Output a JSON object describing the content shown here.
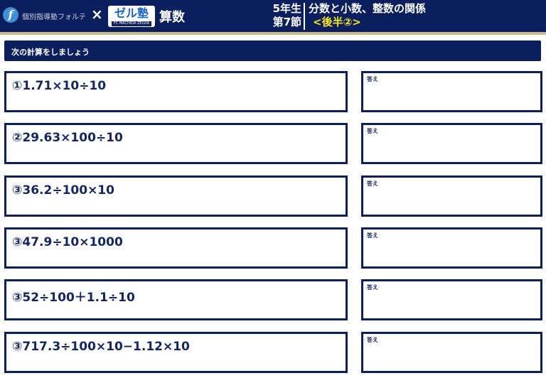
{
  "header": {
    "logo_letter": "f",
    "brand": "個別指導塾フォルテ",
    "times": "×",
    "partner_logo": "ゼル塾",
    "partner_sub": "FC MACHIDA ZELVIA",
    "subject": "算数",
    "grade": "5年生",
    "section": "第7節",
    "title": "分数と小数、整数の関係",
    "subtitle": "<後半②>"
  },
  "instruction": "次の計算をしましょう",
  "answer_label": "答え",
  "problems": [
    "①1.71×10÷10",
    "②29.63×100÷10",
    "③36.2÷100×10",
    "③47.9÷10×1000",
    "③52÷100＋1.1÷10",
    "③717.3÷100×10−1.12×10"
  ]
}
